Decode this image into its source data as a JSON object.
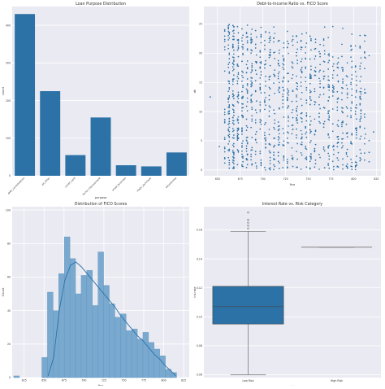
{
  "colors": {
    "bar": "#2c72a6",
    "hist": "#79a9cf",
    "line": "#2c72a6",
    "panel": "#eaeaf2",
    "grid": "#ffffff"
  },
  "chart_data": [
    {
      "type": "bar",
      "title": "Loan Purpose Distribution",
      "xlabel": "purpose",
      "ylabel": "count",
      "categories": [
        "debt_consolidation",
        "all_other",
        "credit_card",
        "home_improvement",
        "small_business",
        "major_purchase",
        "educational"
      ],
      "values": [
        430,
        225,
        55,
        155,
        28,
        25,
        62
      ],
      "ylim": [
        0,
        450
      ],
      "yticks": [
        0,
        100,
        200,
        300,
        400
      ],
      "grid": true
    },
    {
      "type": "scatter",
      "title": "Debt-to-Income Ratio vs. FICO Score",
      "xlabel": "fico",
      "ylabel": "dti",
      "xlim": [
        635,
        830
      ],
      "ylim": [
        -1,
        28
      ],
      "xticks": [
        650,
        675,
        700,
        725,
        750,
        775,
        800,
        825
      ],
      "yticks": [
        0,
        5,
        10,
        15,
        20,
        25
      ],
      "grid": true,
      "outliers": [
        [
          642,
          12.5
        ],
        [
          652,
          4
        ],
        [
          822,
          6.5
        ],
        [
          817,
          3
        ]
      ],
      "cloud": {
        "x_range": [
          660,
          815
        ],
        "y_range": [
          0,
          25
        ],
        "peak_x": 705,
        "count": 1200
      }
    },
    {
      "type": "histogram",
      "title": "Distribution of FICO Scores",
      "xlabel": "fico",
      "ylabel": "Count",
      "bin_start": 612,
      "bin_width": 7.04,
      "counts": [
        1,
        0,
        0,
        0,
        0,
        12,
        51,
        40,
        62,
        84,
        71,
        50,
        61,
        64,
        43,
        75,
        55,
        44,
        36,
        38,
        28,
        29,
        23,
        27,
        21,
        17,
        13,
        5,
        3
      ],
      "kde": [
        [
          655,
          1
        ],
        [
          662,
          12
        ],
        [
          669,
          40
        ],
        [
          676,
          58
        ],
        [
          683,
          67
        ],
        [
          690,
          69
        ],
        [
          697,
          66
        ],
        [
          704,
          62
        ],
        [
          711,
          58
        ],
        [
          718,
          54
        ],
        [
          725,
          50
        ],
        [
          732,
          46
        ],
        [
          739,
          42
        ],
        [
          746,
          37
        ],
        [
          753,
          33
        ],
        [
          760,
          29
        ],
        [
          767,
          25
        ],
        [
          774,
          22
        ],
        [
          781,
          18
        ],
        [
          788,
          14
        ],
        [
          795,
          11
        ],
        [
          802,
          7
        ],
        [
          809,
          4
        ],
        [
          815,
          1
        ]
      ],
      "xlim": [
        610,
        832
      ],
      "ylim": [
        0,
        102
      ],
      "xticks": [
        625,
        650,
        675,
        700,
        725,
        750,
        775,
        800,
        825
      ],
      "yticks": [
        0,
        20,
        40,
        60,
        80,
        100
      ],
      "grid": true
    },
    {
      "type": "box",
      "title": "Interest Rate vs. Risk Category",
      "xlabel": "risk",
      "ylabel": "int.rate",
      "categories": [
        "Low Risk",
        "High Risk"
      ],
      "boxes": [
        {
          "whisker_low": 0.06,
          "q1": 0.095,
          "median": 0.107,
          "q3": 0.121,
          "whisker_high": 0.159,
          "outliers": [
            0.161,
            0.163,
            0.165,
            0.167,
            0.172
          ]
        },
        {
          "whisker_low": 0.148,
          "q1": 0.148,
          "median": 0.148,
          "q3": 0.148,
          "whisker_high": 0.148,
          "outliers": []
        }
      ],
      "ylim": [
        0.058,
        0.176
      ],
      "yticks": [
        0.06,
        0.08,
        0.1,
        0.12,
        0.14,
        0.16
      ],
      "ytick_labels": [
        "0.06",
        "0.08",
        "0.10",
        "0.12",
        "0.14",
        "0.16"
      ],
      "grid": true
    }
  ]
}
